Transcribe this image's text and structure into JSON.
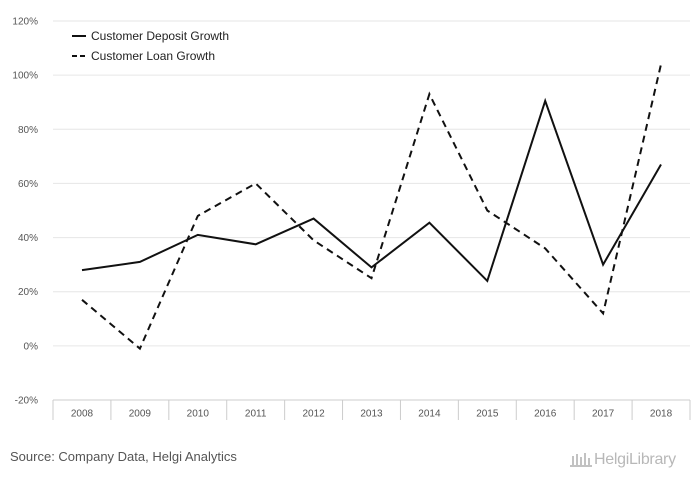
{
  "chart_data": {
    "type": "line",
    "categories": [
      "2008",
      "2009",
      "2010",
      "2011",
      "2012",
      "2013",
      "2014",
      "2015",
      "2016",
      "2017",
      "2018"
    ],
    "series": [
      {
        "name": "Customer Deposit Growth",
        "values": [
          28,
          31,
          41,
          37.5,
          47,
          29,
          45.5,
          24,
          90.5,
          30,
          67
        ],
        "style": "solid",
        "color": "#111111"
      },
      {
        "name": "Customer Loan Growth",
        "values": [
          17,
          -1,
          48,
          60,
          39,
          25,
          93,
          50,
          36,
          12,
          104
        ],
        "style": "dashed",
        "color": "#111111"
      }
    ],
    "ylim": [
      -20,
      120
    ],
    "yticks": [
      -20,
      0,
      20,
      40,
      60,
      80,
      100,
      120
    ],
    "ytick_format": "percent",
    "grid": "horizontal",
    "legend_position": "top-left",
    "title": "",
    "xlabel": "",
    "ylabel": ""
  },
  "footer": {
    "source": "Source: Company Data, Helgi Analytics",
    "brand": "HelgiLibrary"
  },
  "colors": {
    "grid": "#e6e6e6",
    "axis": "#cccccc",
    "line": "#111111",
    "brand": "#b8b8b8"
  }
}
